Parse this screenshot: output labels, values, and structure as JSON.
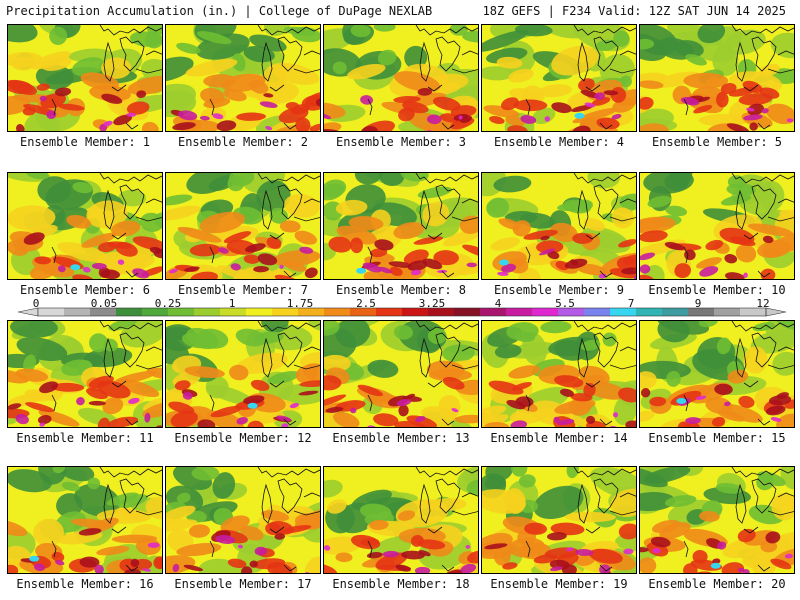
{
  "header": {
    "title_left": "Precipitation Accumulation (in.) | College of DuPage NEXLAB",
    "title_right": "18Z GEFS | F234 Valid: 12Z SAT JUN 14 2025"
  },
  "legend": {
    "tick_labels": [
      "0",
      "0.05",
      "0.25",
      "1",
      "1.75",
      "2.5",
      "3.25",
      "4",
      "5.5",
      "7",
      "9",
      "12"
    ],
    "colors": [
      "#d8d8d8",
      "#b4b4b4",
      "#8c8c8c",
      "#3f8f3a",
      "#4fa83a",
      "#6fbe33",
      "#9ccd2f",
      "#c8dc28",
      "#f0f020",
      "#f6d21e",
      "#f4b01c",
      "#f08a18",
      "#ea6214",
      "#e43414",
      "#cc1414",
      "#a8101c",
      "#861026",
      "#a8146e",
      "#c81ca0",
      "#e028d0",
      "#b458e8",
      "#7a82f0",
      "#36d6f0",
      "#30b4b4",
      "#3c9ca0",
      "#787878",
      "#a0a0a0",
      "#c8c8c8"
    ]
  },
  "panels": [
    {
      "label": "Ensemble Member: 1"
    },
    {
      "label": "Ensemble Member: 2"
    },
    {
      "label": "Ensemble Member: 3"
    },
    {
      "label": "Ensemble Member: 4"
    },
    {
      "label": "Ensemble Member: 5"
    },
    {
      "label": "Ensemble Member: 6"
    },
    {
      "label": "Ensemble Member: 7"
    },
    {
      "label": "Ensemble Member: 8"
    },
    {
      "label": "Ensemble Member: 9"
    },
    {
      "label": "Ensemble Member: 10"
    },
    {
      "label": "Ensemble Member: 11"
    },
    {
      "label": "Ensemble Member: 12"
    },
    {
      "label": "Ensemble Member: 13"
    },
    {
      "label": "Ensemble Member: 14"
    },
    {
      "label": "Ensemble Member: 15"
    },
    {
      "label": "Ensemble Member: 16"
    },
    {
      "label": "Ensemble Member: 17"
    },
    {
      "label": "Ensemble Member: 18"
    },
    {
      "label": "Ensemble Member: 19"
    },
    {
      "label": "Ensemble Member: 20"
    }
  ]
}
